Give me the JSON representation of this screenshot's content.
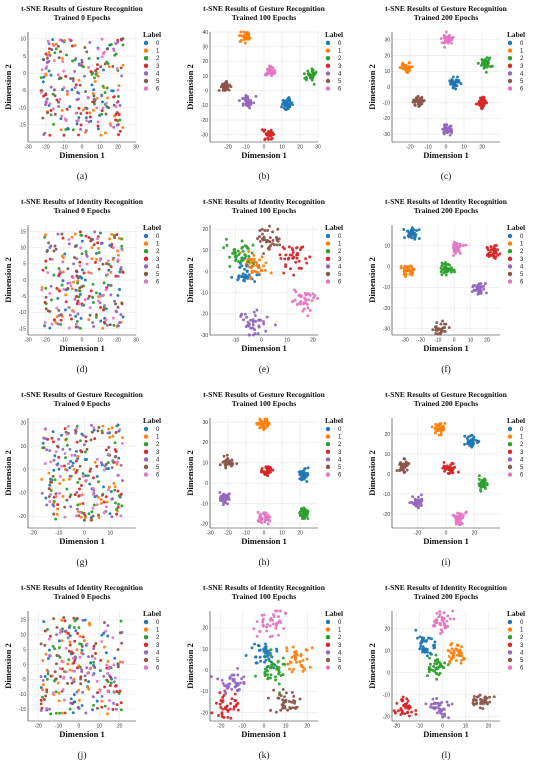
{
  "label_colors": [
    "#1f77b4",
    "#ff7f0e",
    "#2ca02c",
    "#d62728",
    "#9467bd",
    "#8c564b",
    "#e377c2"
  ],
  "chart_data": [
    {
      "type": "scatter",
      "caption": "(a)",
      "title": "t-SNE Results of Gesture Recognition\nTrained 0 Epochs",
      "xlabel": "Dimension 1",
      "ylabel": "Dimension 2",
      "legend_title": "Label",
      "legend_labels": [
        "0",
        "1",
        "2",
        "3",
        "4",
        "5",
        "6"
      ],
      "xlim": [
        -30,
        30
      ],
      "ylim": [
        -20,
        12
      ],
      "xticks": [
        -30,
        -20,
        -10,
        0,
        10,
        20,
        30
      ],
      "yticks": [
        -15,
        -10,
        -5,
        0,
        5,
        10
      ],
      "layout": "mixed",
      "spread": 10
    },
    {
      "type": "scatter",
      "caption": "(b)",
      "title": "t-SNE Results of Gesture Recognition\nTrained 100 Epochs",
      "xlabel": "Dimension 1",
      "ylabel": "Dimension 2",
      "legend_title": "Label",
      "legend_labels": [
        "0",
        "1",
        "2",
        "3",
        "4",
        "5",
        "6"
      ],
      "xlim": [
        -30,
        30
      ],
      "ylim": [
        -35,
        40
      ],
      "xticks": [
        -20,
        -10,
        0,
        10,
        20,
        30
      ],
      "yticks": [
        -30,
        -20,
        -10,
        0,
        10,
        20,
        30,
        40
      ],
      "layout": "clusters",
      "spread": 1.5,
      "centers": [
        [
          13,
          -9
        ],
        [
          -10,
          37
        ],
        [
          26,
          11
        ],
        [
          3,
          -30
        ],
        [
          -9,
          -7
        ],
        [
          -22,
          3
        ],
        [
          3,
          13
        ]
      ]
    },
    {
      "type": "scatter",
      "caption": "(c)",
      "title": "t-SNE Results of Gesture Recognition\nTrained 200 Epochs",
      "xlabel": "Dimension 1",
      "ylabel": "Dimension 2",
      "legend_title": "Label",
      "legend_labels": [
        "0",
        "1",
        "2",
        "3",
        "4",
        "5",
        "6"
      ],
      "xlim": [
        -30,
        30
      ],
      "ylim": [
        -35,
        35
      ],
      "xticks": [
        -20,
        -10,
        0,
        10,
        20
      ],
      "yticks": [
        -30,
        -20,
        -10,
        0,
        10,
        20,
        30
      ],
      "layout": "clusters",
      "spread": 1.5,
      "centers": [
        [
          5,
          3
        ],
        [
          -22,
          12
        ],
        [
          22,
          15
        ],
        [
          20,
          -10
        ],
        [
          1,
          -27
        ],
        [
          -15,
          -9
        ],
        [
          1,
          30
        ]
      ]
    },
    {
      "type": "scatter",
      "caption": "(d)",
      "title": "t-SNE Results of Identity Recognition\nTrained 0 Epochs",
      "xlabel": "Dimension 1",
      "ylabel": "Dimension 2",
      "legend_title": "Label",
      "legend_labels": [
        "0",
        "1",
        "2",
        "3",
        "4",
        "5",
        "6"
      ],
      "xlim": [
        -30,
        30
      ],
      "ylim": [
        -17,
        17
      ],
      "xticks": [
        -30,
        -20,
        -10,
        0,
        10,
        20,
        30
      ],
      "yticks": [
        -15,
        -10,
        -5,
        0,
        5,
        10,
        15
      ],
      "layout": "mixed",
      "spread": 12
    },
    {
      "type": "scatter",
      "caption": "(e)",
      "title": "t-SNE Results of Identity Recognition\nTrained 100 Epochs",
      "xlabel": "Dimension 1",
      "ylabel": "Dimension 2",
      "legend_title": "Label",
      "legend_labels": [
        "0",
        "1",
        "2",
        "3",
        "4",
        "5",
        "6"
      ],
      "xlim": [
        -20,
        22
      ],
      "ylim": [
        -30,
        22
      ],
      "xticks": [
        -10,
        0,
        10,
        20
      ],
      "yticks": [
        -30,
        -20,
        -10,
        0,
        10,
        20
      ],
      "layout": "clusters",
      "spread": 2.5,
      "centers": [
        [
          -6,
          0
        ],
        [
          -3,
          3
        ],
        [
          -8,
          8
        ],
        [
          12,
          7
        ],
        [
          -3,
          -24
        ],
        [
          3,
          15
        ],
        [
          17,
          -13
        ]
      ]
    },
    {
      "type": "scatter",
      "caption": "(f)",
      "title": "t-SNE Results of Identity Recognition\nTrained 200 Epochs",
      "xlabel": "Dimension 1",
      "ylabel": "Dimension 2",
      "legend_title": "Label",
      "legend_labels": [
        "0",
        "1",
        "2",
        "3",
        "4",
        "5",
        "6"
      ],
      "xlim": [
        -38,
        28
      ],
      "ylim": [
        -33,
        20
      ],
      "xticks": [
        -30,
        -20,
        -10,
        0,
        10,
        20
      ],
      "yticks": [
        -30,
        -20,
        -10,
        0,
        10
      ],
      "layout": "clusters",
      "spread": 2,
      "centers": [
        [
          -26,
          16
        ],
        [
          -28,
          -2
        ],
        [
          -4,
          -1
        ],
        [
          23,
          7
        ],
        [
          15,
          -11
        ],
        [
          -9,
          -30
        ],
        [
          2,
          9
        ]
      ]
    },
    {
      "type": "scatter",
      "caption": "(g)",
      "title": "t-SNE Results of Gesture Recognition\nTrained 0 Epochs",
      "xlabel": "Dimension 1",
      "ylabel": "Dimension 2",
      "legend_title": "Label",
      "legend_labels": [
        "0",
        "1",
        "2",
        "3",
        "4",
        "5",
        "6"
      ],
      "xlim": [
        -22,
        20
      ],
      "ylim": [
        -25,
        22
      ],
      "xticks": [
        -20,
        -10,
        0,
        10
      ],
      "yticks": [
        -20,
        -10,
        0,
        10,
        20
      ],
      "layout": "mixed",
      "spread": 9
    },
    {
      "type": "scatter",
      "caption": "(h)",
      "title": "t-SNE Results of Gesture Recognition\nTrained 100 Epochs",
      "xlabel": "Dimension 1",
      "ylabel": "Dimension 2",
      "legend_title": "Label",
      "legend_labels": [
        "0",
        "1",
        "2",
        "3",
        "4",
        "5",
        "6"
      ],
      "xlim": [
        -30,
        30
      ],
      "ylim": [
        -22,
        32
      ],
      "xticks": [
        -30,
        -20,
        -10,
        0,
        10,
        20
      ],
      "yticks": [
        -20,
        -10,
        0,
        10,
        20,
        30
      ],
      "layout": "clusters",
      "spread": 1.6,
      "centers": [
        [
          22,
          4
        ],
        [
          0,
          29
        ],
        [
          22,
          -15
        ],
        [
          2,
          6
        ],
        [
          -22,
          -7
        ],
        [
          -20,
          10
        ],
        [
          0,
          -17
        ]
      ]
    },
    {
      "type": "scatter",
      "caption": "(i)",
      "title": "t-SNE Results of Gesture Recognition\nTrained 200 Epochs",
      "xlabel": "Dimension 1",
      "ylabel": "Dimension 2",
      "legend_title": "Label",
      "legend_labels": [
        "0",
        "1",
        "2",
        "3",
        "4",
        "5",
        "6"
      ],
      "xlim": [
        -38,
        38
      ],
      "ylim": [
        -27,
        28
      ],
      "xticks": [
        -20,
        0,
        20
      ],
      "yticks": [
        -20,
        -10,
        0,
        10,
        20
      ],
      "layout": "clusters",
      "spread": 2,
      "centers": [
        [
          18,
          16
        ],
        [
          -4,
          23
        ],
        [
          26,
          -5
        ],
        [
          2,
          3
        ],
        [
          -20,
          -14
        ],
        [
          -30,
          4
        ],
        [
          10,
          -22
        ]
      ]
    },
    {
      "type": "scatter",
      "caption": "(j)",
      "title": "t-SNE Results of Identity Recognition\nTrained 0 Epochs",
      "xlabel": "Dimension 1",
      "ylabel": "Dimension 2",
      "legend_title": "Label",
      "legend_labels": [
        "0",
        "1",
        "2",
        "3",
        "4",
        "5",
        "6"
      ],
      "xlim": [
        -25,
        28
      ],
      "ylim": [
        -19,
        18
      ],
      "xticks": [
        -20,
        -10,
        0,
        10,
        20
      ],
      "yticks": [
        -15,
        -10,
        -5,
        0,
        5,
        10,
        15
      ],
      "layout": "mixed",
      "spread": 11
    },
    {
      "type": "scatter",
      "caption": "(k)",
      "title": "t-SNE Results of Identity Recognition\nTrained 100 Epochs",
      "xlabel": "Dimension 1",
      "ylabel": "Dimension 2",
      "legend_title": "Label",
      "legend_labels": [
        "0",
        "1",
        "2",
        "3",
        "4",
        "5",
        "6"
      ],
      "xlim": [
        -25,
        25
      ],
      "ylim": [
        -24,
        28
      ],
      "xticks": [
        -20,
        -10,
        0,
        10,
        20
      ],
      "yticks": [
        -20,
        -10,
        0,
        10,
        20
      ],
      "layout": "clusters",
      "spread": 3.2,
      "centers": [
        [
          -1,
          8
        ],
        [
          14,
          5
        ],
        [
          4,
          0
        ],
        [
          -17,
          -17
        ],
        [
          -15,
          -5
        ],
        [
          10,
          -15
        ],
        [
          3,
          22
        ]
      ]
    },
    {
      "type": "scatter",
      "caption": "(l)",
      "title": "t-SNE Results of Identity Recognition\nTrained 200 Epochs",
      "xlabel": "Dimension 1",
      "ylabel": "Dimension 2",
      "legend_title": "Label",
      "legend_labels": [
        "0",
        "1",
        "2",
        "3",
        "4",
        "5",
        "6"
      ],
      "xlim": [
        -22,
        25
      ],
      "ylim": [
        -22,
        28
      ],
      "xticks": [
        -20,
        -10,
        0,
        10,
        20
      ],
      "yticks": [
        -20,
        -10,
        0,
        10,
        20
      ],
      "layout": "clusters",
      "spread": 2.3,
      "centers": [
        [
          -8,
          12
        ],
        [
          6,
          9
        ],
        [
          -2,
          2
        ],
        [
          -17,
          -16
        ],
        [
          -2,
          -16
        ],
        [
          17,
          -13
        ],
        [
          0,
          23
        ]
      ]
    }
  ]
}
